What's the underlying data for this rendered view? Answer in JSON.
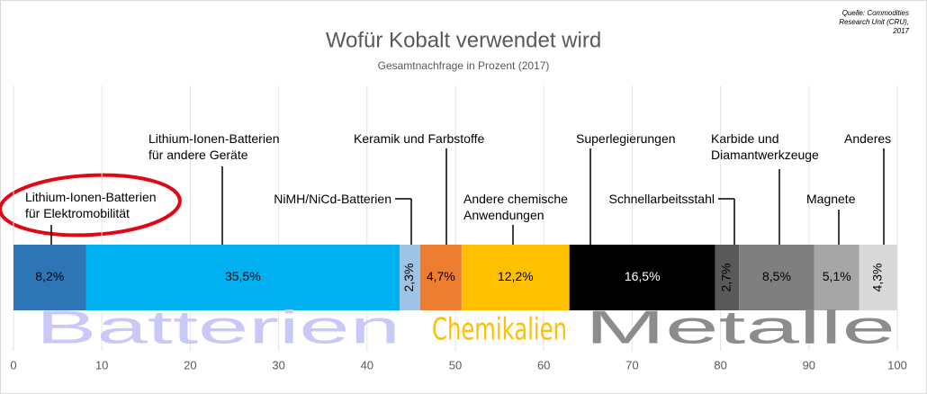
{
  "chart_data": {
    "type": "stacked-bar",
    "title": "Wofür Kobalt verwendet wird",
    "subtitle": "Gesamtnachfrage in Prozent (2017)",
    "source": "Quelle: Commodities\nResearch Unit (CRU),\n2017",
    "xlim": [
      0,
      100
    ],
    "xticks": [
      0,
      10,
      20,
      30,
      40,
      50,
      60,
      70,
      80,
      90,
      100
    ],
    "grid": true,
    "series": [
      {
        "name": "Lithium-Ionen-Batterien\nfür Elektromobilität",
        "color": "#2e75b6",
        "values": [
          8.2
        ],
        "value_labels": [
          "8,2%"
        ]
      },
      {
        "name": "Lithium-Ionen-Batterien\nfür andere Geräte",
        "color": "#00b0f0",
        "values": [
          35.5
        ],
        "value_labels": [
          "35,5%"
        ]
      },
      {
        "name": "NiMH/NiCd-Batterien",
        "color": "#9dc3e6",
        "values": [
          2.3
        ],
        "value_labels": [
          "2,3%"
        ]
      },
      {
        "name": "Keramik und Farbstoffe",
        "color": "#ed7d31",
        "values": [
          4.7
        ],
        "value_labels": [
          "4,7%"
        ]
      },
      {
        "name": "Andere chemische\nAnwendungen",
        "color": "#ffc000",
        "values": [
          12.2
        ],
        "value_labels": [
          "12,2%"
        ]
      },
      {
        "name": "Superlegierungen",
        "color": "#000000",
        "values": [
          16.5
        ],
        "value_labels": [
          "16,5%"
        ]
      },
      {
        "name": "Schnellarbeitsstahl",
        "color": "#595959",
        "values": [
          2.7
        ],
        "value_labels": [
          "2,7%"
        ]
      },
      {
        "name": "Karbide und\nDiamantwerkzeuge",
        "color": "#7f7f7f",
        "values": [
          8.5
        ],
        "value_labels": [
          "8,5%"
        ]
      },
      {
        "name": "Magnete",
        "color": "#a6a6a6",
        "values": [
          5.1
        ],
        "value_labels": [
          "5,1%"
        ]
      },
      {
        "name": "Anderes",
        "color": "#d9d9d9",
        "values": [
          4.3
        ],
        "value_labels": [
          "4,3%"
        ]
      }
    ],
    "groups": [
      {
        "label": "Batterien",
        "color": "#c9c9f7"
      },
      {
        "label": "Chemikalien",
        "color": "#ffc000"
      },
      {
        "label": "Metalle",
        "color": "#8c8c8c"
      }
    ]
  }
}
